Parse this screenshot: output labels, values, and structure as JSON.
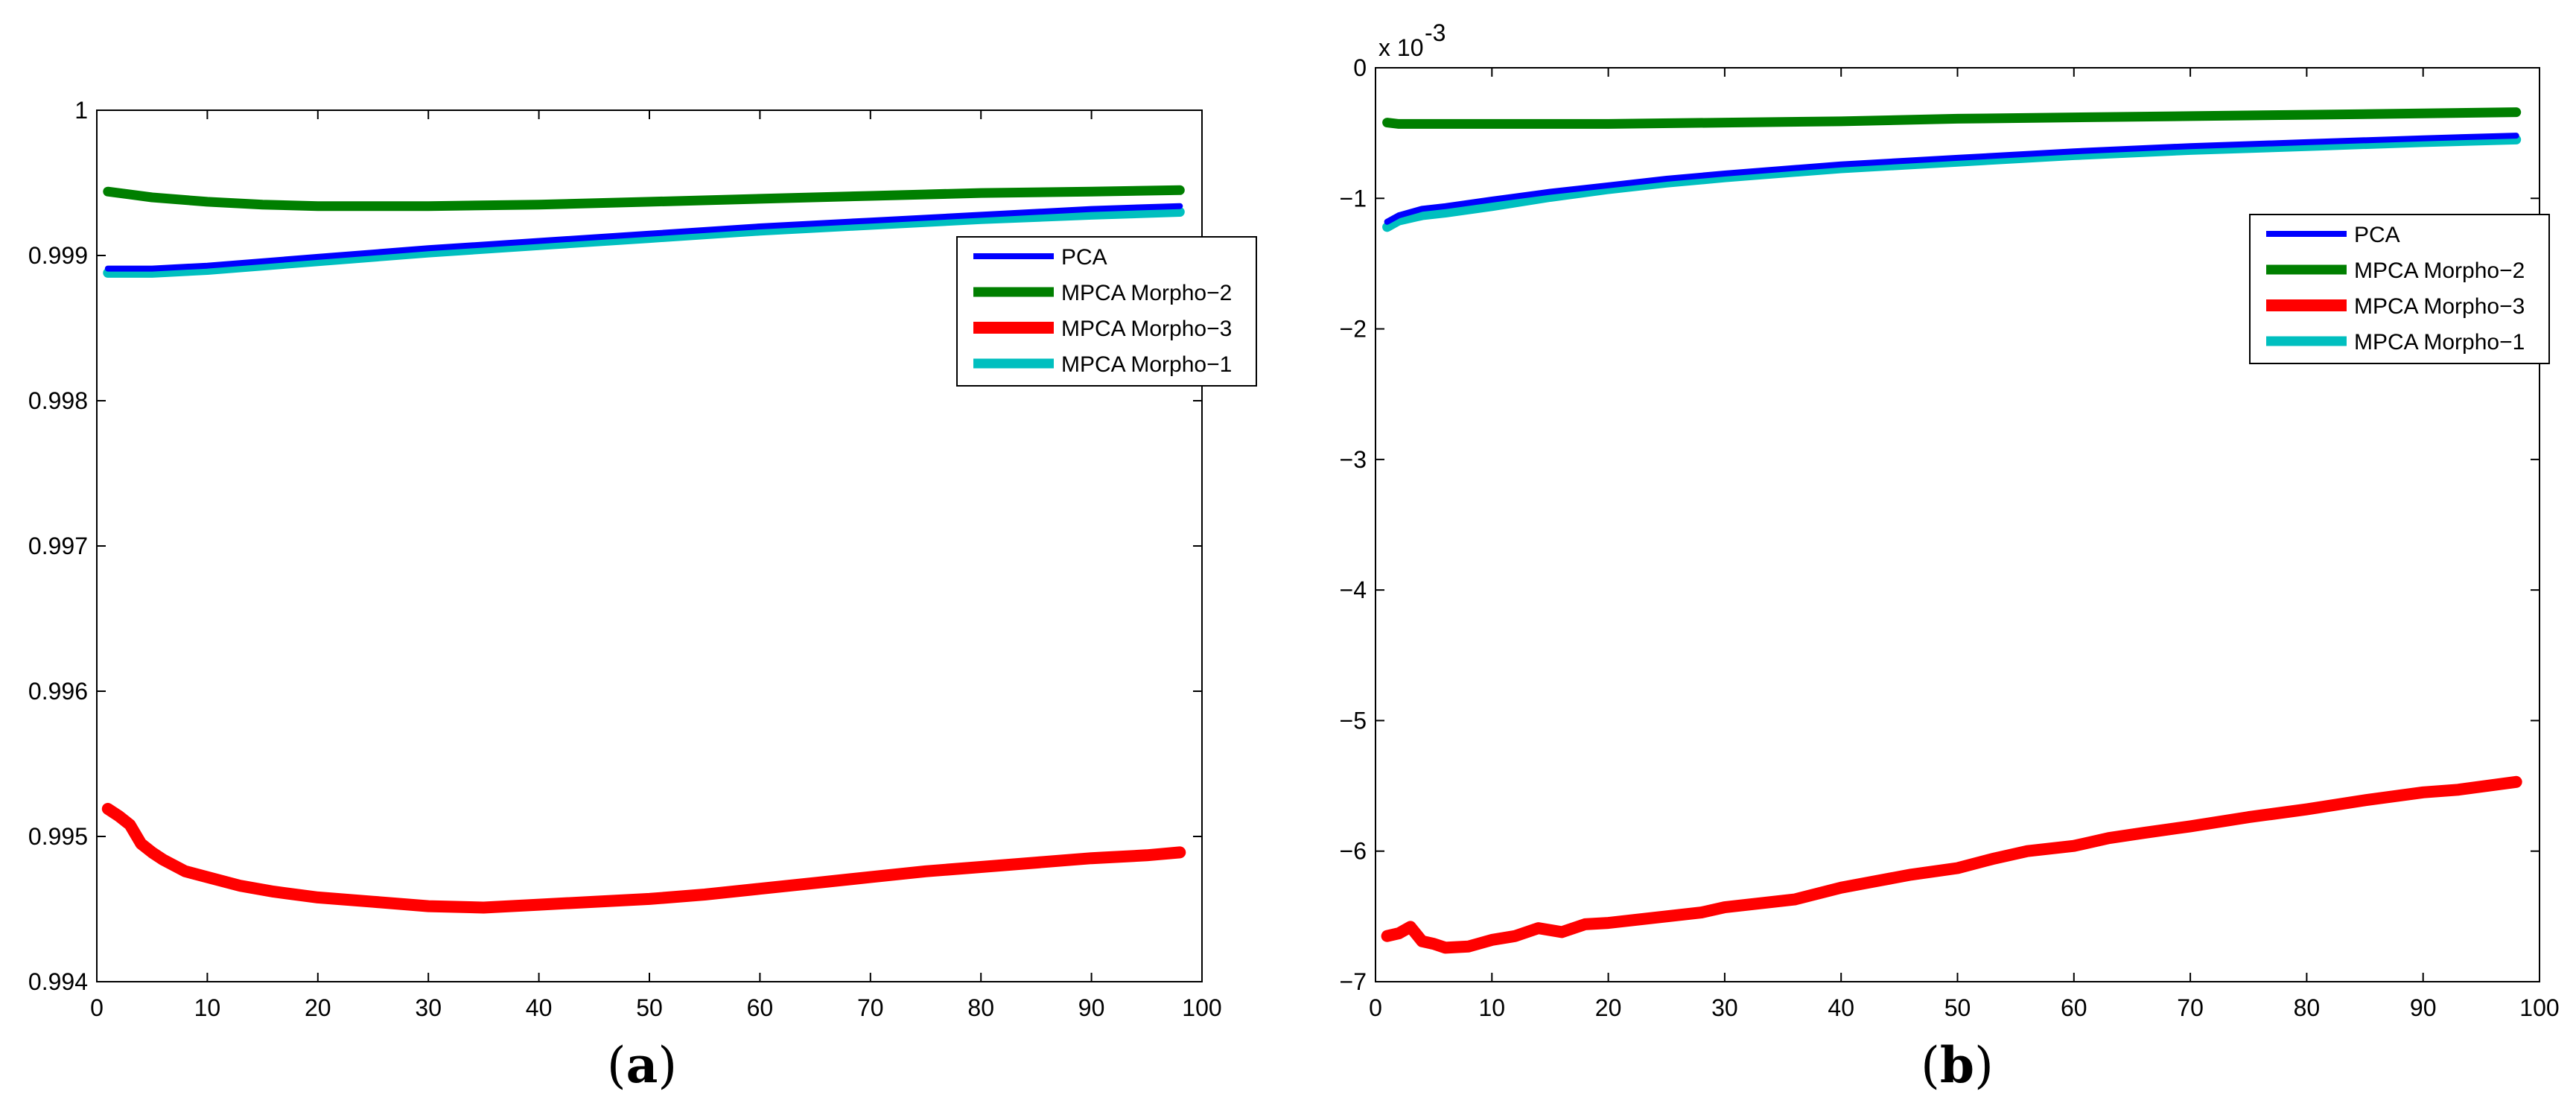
{
  "chart_data": [
    {
      "type": "line",
      "caption": "a",
      "xlim": [
        0,
        100
      ],
      "ylim": [
        0.994,
        1
      ],
      "xticks": [
        "0",
        "10",
        "20",
        "30",
        "40",
        "50",
        "60",
        "70",
        "80",
        "90",
        "100"
      ],
      "yticks": [
        "0.994",
        "0.995",
        "0.996",
        "0.997",
        "0.998",
        "0.999",
        "1"
      ],
      "grid": false,
      "legend_placement": "right",
      "legend": [
        "PCA",
        "MPCA Morpho-2",
        "MPCA Morpho-3",
        "MPCA Morpho-1"
      ],
      "series": [
        {
          "name": "PCA",
          "color": "#0000ff",
          "x": [
            1,
            5,
            10,
            20,
            30,
            40,
            50,
            60,
            70,
            80,
            90,
            98
          ],
          "y": [
            0.99891,
            0.99891,
            0.99893,
            0.99899,
            0.99905,
            0.9991,
            0.99915,
            0.9992,
            0.99924,
            0.99928,
            0.99932,
            0.99934
          ]
        },
        {
          "name": "MPCA Morpho-2",
          "color": "#007f00",
          "x": [
            1,
            3,
            5,
            10,
            15,
            20,
            25,
            30,
            40,
            50,
            60,
            70,
            80,
            90,
            98
          ],
          "y": [
            0.99944,
            0.99942,
            0.9994,
            0.99937,
            0.99935,
            0.99934,
            0.99934,
            0.99934,
            0.99935,
            0.99937,
            0.99939,
            0.99941,
            0.99943,
            0.99944,
            0.99945
          ]
        },
        {
          "name": "MPCA Morpho-3",
          "color": "#ff0000",
          "x": [
            1,
            2,
            3,
            4,
            5,
            6,
            8,
            10,
            13,
            16,
            20,
            25,
            30,
            35,
            40,
            45,
            50,
            55,
            60,
            65,
            70,
            75,
            80,
            85,
            90,
            95,
            98
          ],
          "y": [
            0.99519,
            0.99514,
            0.99508,
            0.99495,
            0.99489,
            0.99484,
            0.99476,
            0.99472,
            0.99466,
            0.99462,
            0.99458,
            0.99455,
            0.99452,
            0.99451,
            0.99453,
            0.99455,
            0.99457,
            0.9946,
            0.99464,
            0.99468,
            0.99472,
            0.99476,
            0.99479,
            0.99482,
            0.99485,
            0.99487,
            0.99489
          ]
        },
        {
          "name": "MPCA Morpho-1",
          "color": "#00bfbf",
          "x": [
            1,
            5,
            10,
            20,
            30,
            40,
            50,
            60,
            70,
            80,
            90,
            98
          ],
          "y": [
            0.99888,
            0.99888,
            0.9989,
            0.99896,
            0.99902,
            0.99907,
            0.99912,
            0.99917,
            0.99921,
            0.99925,
            0.99928,
            0.9993
          ]
        }
      ]
    },
    {
      "type": "line",
      "caption": "b",
      "xlim": [
        0,
        100
      ],
      "ylim": [
        -7,
        0
      ],
      "exponent_label": "x 10",
      "exponent_power": "-3",
      "xticks": [
        "0",
        "10",
        "20",
        "30",
        "40",
        "50",
        "60",
        "70",
        "80",
        "90",
        "100"
      ],
      "yticks": [
        "-7",
        "-6",
        "-5",
        "-4",
        "-3",
        "-2",
        "-1",
        "0"
      ],
      "grid": false,
      "legend_placement": "right",
      "legend": [
        "PCA",
        "MPCA Morpho-2",
        "MPCA Morpho-3",
        "MPCA Morpho-1"
      ],
      "series": [
        {
          "name": "PCA",
          "color": "#0000ff",
          "x": [
            1,
            2,
            4,
            6,
            10,
            15,
            20,
            25,
            30,
            40,
            50,
            60,
            70,
            80,
            90,
            98
          ],
          "y": [
            -1.18,
            -1.13,
            -1.08,
            -1.06,
            -1.01,
            -0.95,
            -0.9,
            -0.85,
            -0.81,
            -0.74,
            -0.69,
            -0.64,
            -0.6,
            -0.57,
            -0.54,
            -0.52
          ]
        },
        {
          "name": "MPCA Morpho-2",
          "color": "#007f00",
          "x": [
            1,
            2,
            5,
            10,
            20,
            30,
            40,
            50,
            60,
            70,
            80,
            90,
            98
          ],
          "y": [
            -0.42,
            -0.43,
            -0.43,
            -0.43,
            -0.43,
            -0.42,
            -0.41,
            -0.39,
            -0.38,
            -0.37,
            -0.36,
            -0.35,
            -0.34
          ]
        },
        {
          "name": "MPCA Morpho-3",
          "color": "#ff0000",
          "x": [
            1,
            2,
            3,
            4,
            5,
            6,
            8,
            10,
            12,
            14,
            16,
            18,
            20,
            22,
            24,
            26,
            28,
            30,
            33,
            36,
            40,
            43,
            46,
            50,
            53,
            56,
            60,
            63,
            66,
            70,
            75,
            80,
            85,
            90,
            93,
            98
          ],
          "y": [
            -6.65,
            -6.63,
            -6.58,
            -6.69,
            -6.71,
            -6.74,
            -6.73,
            -6.68,
            -6.65,
            -6.59,
            -6.62,
            -6.56,
            -6.55,
            -6.53,
            -6.51,
            -6.49,
            -6.47,
            -6.43,
            -6.4,
            -6.37,
            -6.28,
            -6.23,
            -6.18,
            -6.13,
            -6.06,
            -6.0,
            -5.96,
            -5.9,
            -5.86,
            -5.81,
            -5.74,
            -5.68,
            -5.61,
            -5.55,
            -5.53,
            -5.47
          ]
        },
        {
          "name": "MPCA Morpho-1",
          "color": "#00bfbf",
          "x": [
            1,
            2,
            4,
            6,
            10,
            15,
            20,
            25,
            30,
            40,
            50,
            60,
            70,
            80,
            90,
            98
          ],
          "y": [
            -1.22,
            -1.17,
            -1.13,
            -1.11,
            -1.06,
            -0.99,
            -0.93,
            -0.88,
            -0.84,
            -0.77,
            -0.72,
            -0.67,
            -0.63,
            -0.6,
            -0.57,
            -0.55
          ]
        }
      ]
    }
  ]
}
